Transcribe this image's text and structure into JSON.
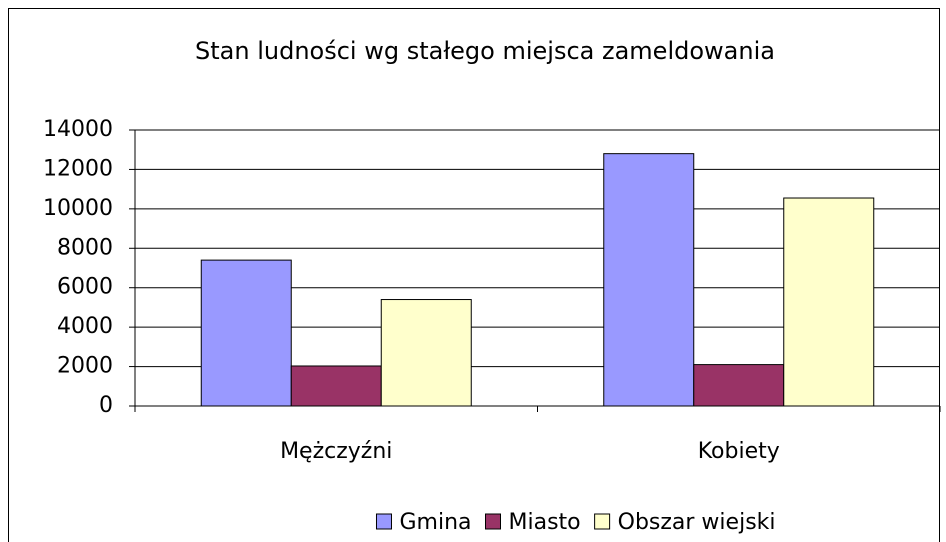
{
  "chart_data": {
    "type": "bar",
    "title": "Stan ludności wg stałego miejsca zameldowania",
    "categories": [
      "Mężczyźni",
      "Kobiety"
    ],
    "series": [
      {
        "name": "Gmina",
        "color": "#9999ff",
        "values": [
          7400,
          12800
        ]
      },
      {
        "name": "Miasto",
        "color": "#993366",
        "values": [
          2030,
          2100
        ]
      },
      {
        "name": "Obszar wiejski",
        "color": "#ffffcc",
        "values": [
          5400,
          10550
        ]
      }
    ],
    "ylim": [
      0,
      14000
    ],
    "yticks": [
      0,
      2000,
      4000,
      6000,
      8000,
      10000,
      12000,
      14000
    ],
    "grid": true,
    "legend": "bottom"
  }
}
